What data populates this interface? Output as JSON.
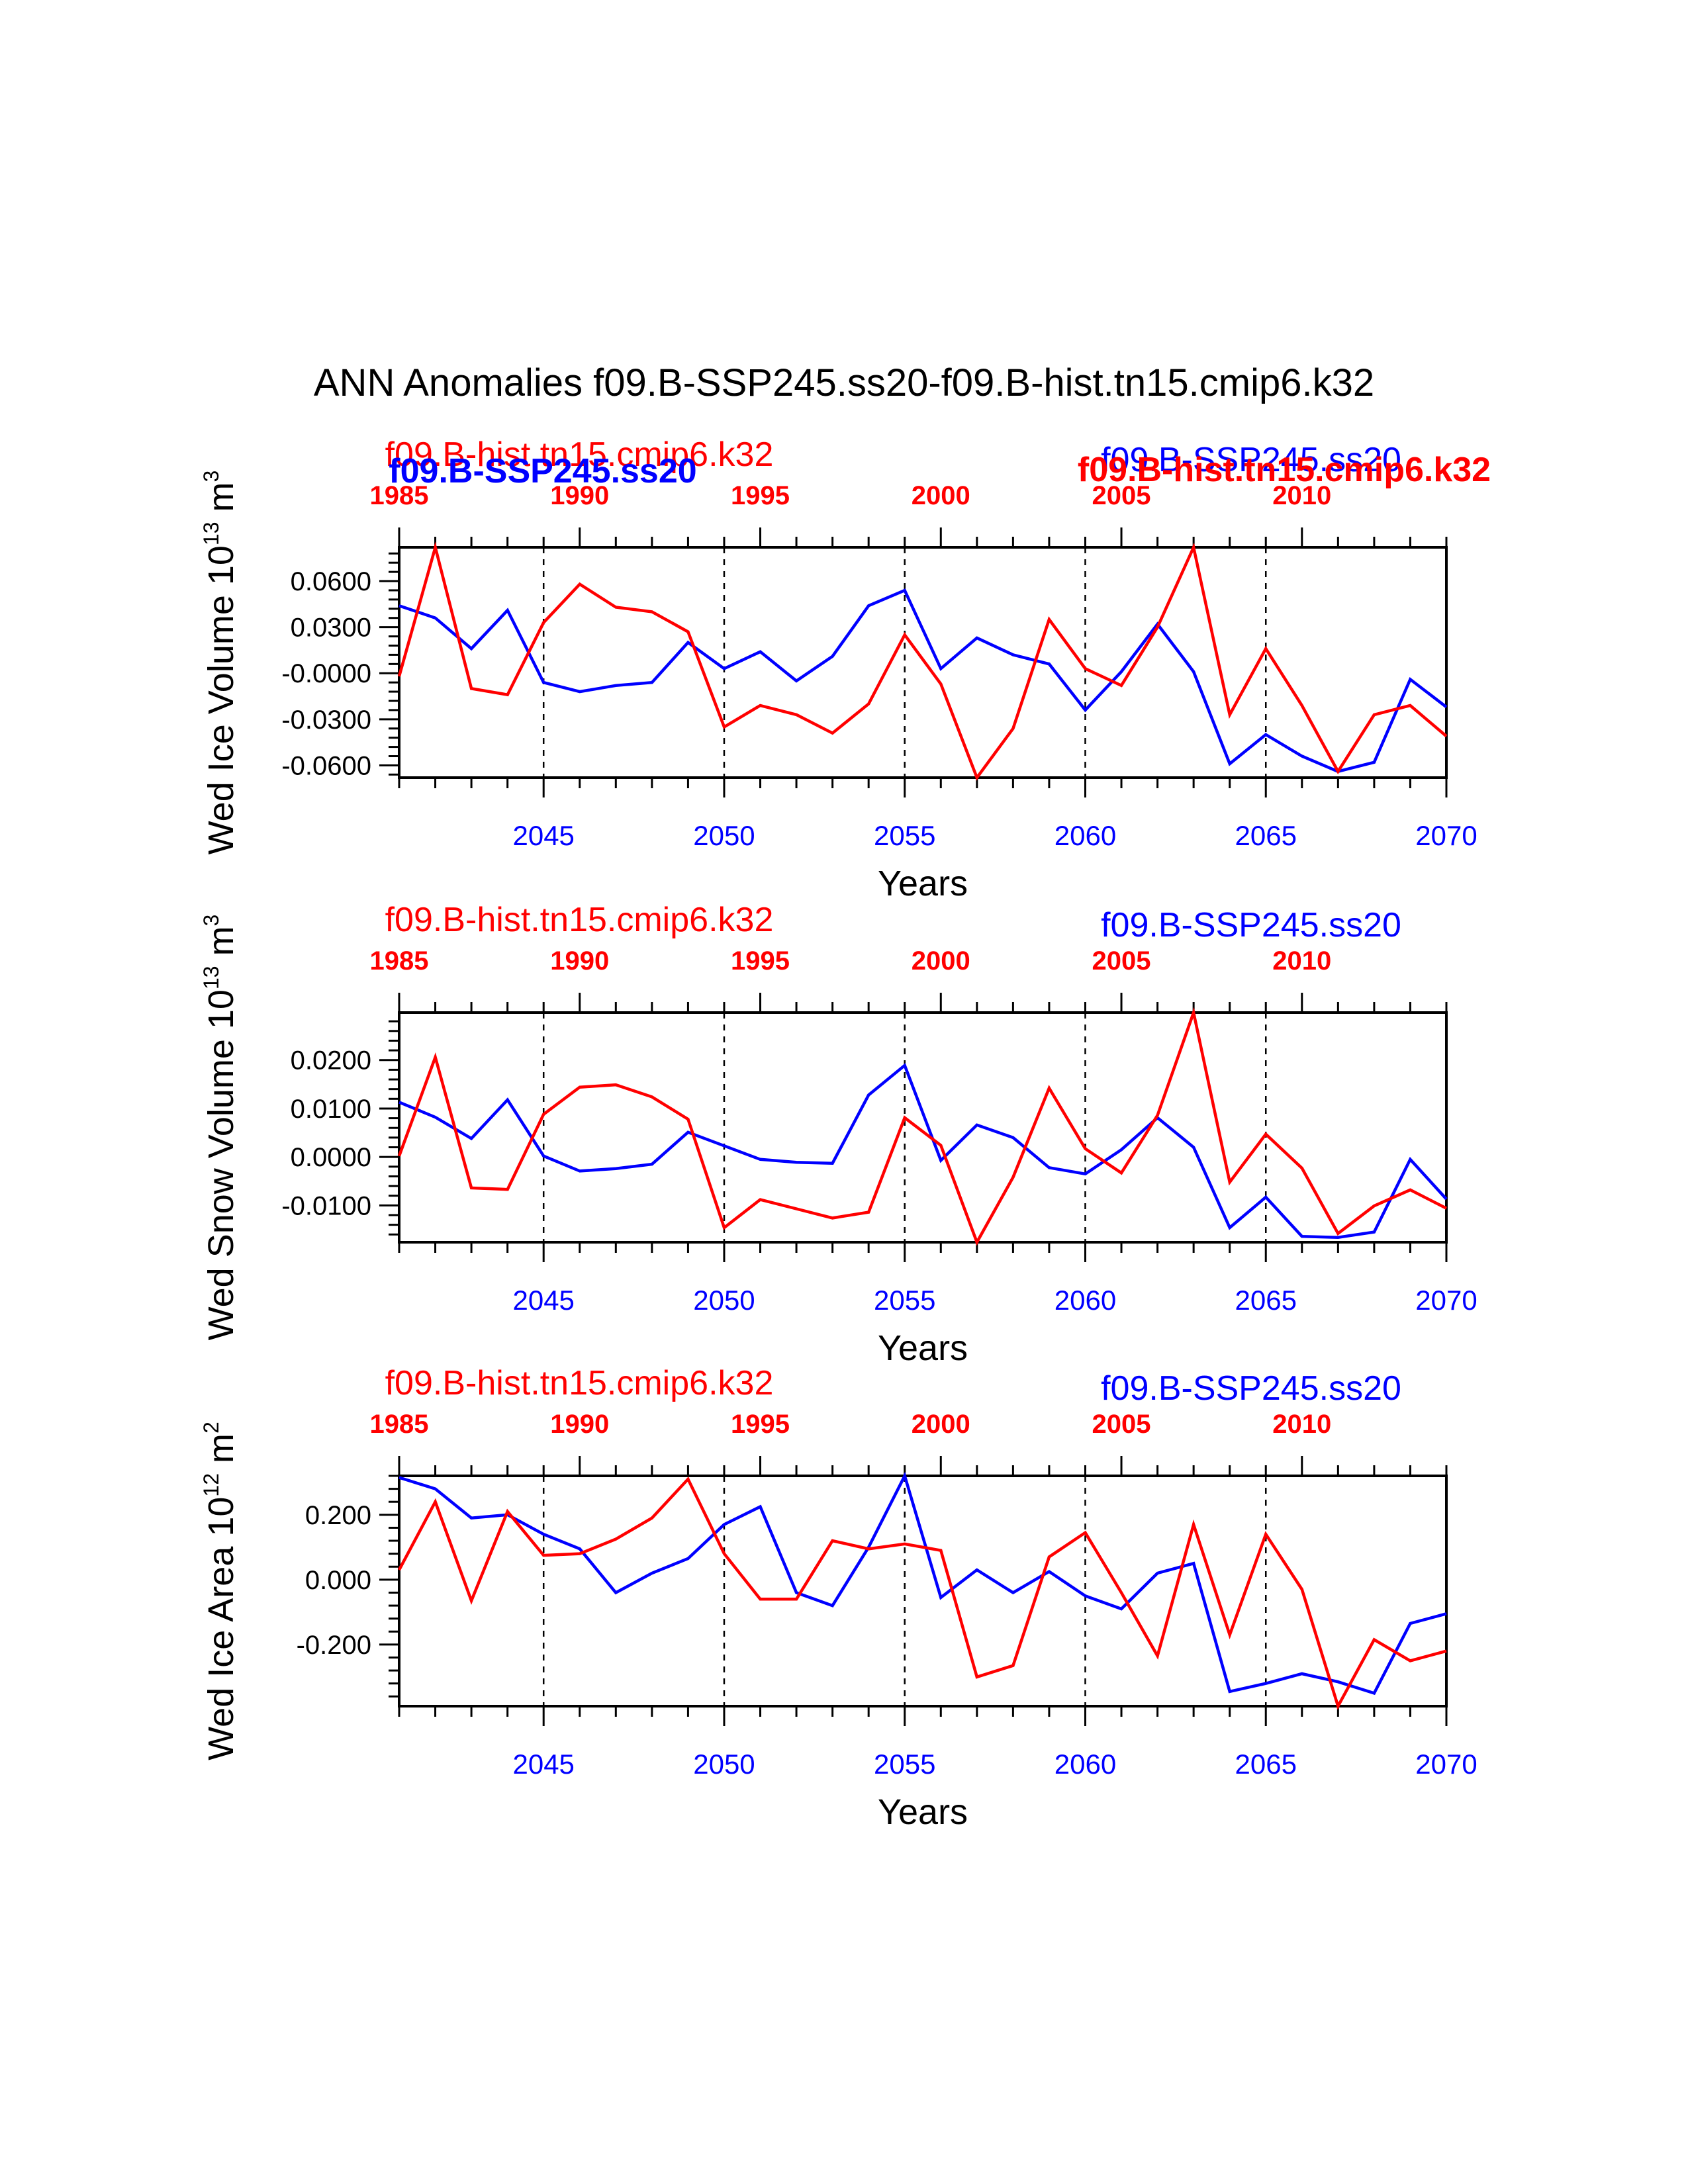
{
  "title": "ANN Anomalies f09.B-SSP245.ss20-f09.B-hist.tn15.cmip6.k32",
  "colors": {
    "ssp": "#0000ff",
    "hist": "#ff0000",
    "axis": "#000000"
  },
  "chart_data": [
    {
      "type": "line",
      "ylabel_main": "Wed Ice Volume 10",
      "ylabel_exp": "13",
      "ylabel_unit": " m",
      "ylabel_unit_exp": "3",
      "xlabel": "Years",
      "ylim": [
        -0.068,
        0.082
      ],
      "yticks": [
        -0.06,
        -0.03,
        0.0,
        0.03,
        0.06
      ],
      "ytick_labels": [
        "-0.0600",
        "-0.0300",
        "-0.0000",
        "0.0300",
        "0.0600"
      ],
      "grid": false,
      "top_label_hist": "f09.B-hist.tn15.cmip6.k32",
      "top_label_ssp": "f09.B-SSP245.ss20",
      "overlap_label_ssp": "f09.B-SSP245.ss20",
      "overlap_label_hist": "f09.B-hist.tn15.cmip6.k32",
      "series": [
        {
          "x_axis": "bottom",
          "x": [
            2041,
            2042,
            2043,
            2044,
            2045,
            2046,
            2047,
            2048,
            2049,
            2050,
            2051,
            2052,
            2053,
            2054,
            2055,
            2056,
            2057,
            2058,
            2059,
            2060,
            2061,
            2062,
            2063,
            2064,
            2065,
            2066,
            2067,
            2068,
            2069,
            2070
          ],
          "values": [
            0.044,
            0.036,
            0.016,
            0.041,
            -0.006,
            -0.012,
            -0.008,
            -0.006,
            0.02,
            0.003,
            0.014,
            -0.005,
            0.011,
            0.044,
            0.054,
            0.003,
            0.023,
            0.012,
            0.006,
            -0.024,
            0.001,
            0.032,
            0.001,
            -0.059,
            -0.04,
            -0.054,
            -0.064,
            -0.058,
            -0.004,
            -0.022
          ]
        },
        {
          "x_axis": "top",
          "x": [
            1985,
            1986,
            1987,
            1988,
            1989,
            1990,
            1991,
            1992,
            1993,
            1994,
            1995,
            1996,
            1997,
            1998,
            1999,
            2000,
            2001,
            2002,
            2003,
            2004,
            2005,
            2006,
            2007,
            2008,
            2009,
            2010,
            2011,
            2012,
            2013,
            2014
          ],
          "values": [
            -0.002,
            0.082,
            -0.01,
            -0.014,
            0.033,
            0.058,
            0.043,
            0.04,
            0.027,
            -0.035,
            -0.021,
            -0.027,
            -0.039,
            -0.02,
            0.025,
            -0.007,
            -0.068,
            -0.036,
            0.035,
            0.003,
            -0.008,
            0.03,
            0.082,
            -0.027,
            0.016,
            -0.021,
            -0.064,
            -0.027,
            -0.021,
            -0.041
          ]
        }
      ]
    },
    {
      "type": "line",
      "ylabel_main": "Wed Snow Volume 10",
      "ylabel_exp": "13",
      "ylabel_unit": " m",
      "ylabel_unit_exp": "3",
      "xlabel": "Years",
      "ylim": [
        -0.0176,
        0.0298
      ],
      "yticks": [
        -0.01,
        0.0,
        0.01,
        0.02
      ],
      "ytick_labels": [
        "-0.0100",
        "0.0000",
        "0.0100",
        "0.0200"
      ],
      "grid": false,
      "top_label_hist": "f09.B-hist.tn15.cmip6.k32",
      "top_label_ssp": "f09.B-SSP245.ss20",
      "series": [
        {
          "x_axis": "bottom",
          "x": [
            2041,
            2042,
            2043,
            2044,
            2045,
            2046,
            2047,
            2048,
            2049,
            2050,
            2051,
            2052,
            2053,
            2054,
            2055,
            2056,
            2057,
            2058,
            2059,
            2060,
            2061,
            2062,
            2063,
            2064,
            2065,
            2066,
            2067,
            2068,
            2069,
            2070
          ],
          "values": [
            0.0113,
            0.0082,
            0.0038,
            0.0118,
            0.0002,
            -0.0029,
            -0.0024,
            -0.0015,
            0.0051,
            0.0023,
            -0.0005,
            -0.0011,
            -0.0013,
            0.0128,
            0.0189,
            -0.0007,
            0.0066,
            0.004,
            -0.0022,
            -0.0035,
            0.0015,
            0.0081,
            0.002,
            -0.0146,
            -0.0083,
            -0.0164,
            -0.0166,
            -0.0155,
            -0.0005,
            -0.0087
          ]
        },
        {
          "x_axis": "top",
          "x": [
            1985,
            1986,
            1987,
            1988,
            1989,
            1990,
            1991,
            1992,
            1993,
            1994,
            1995,
            1996,
            1997,
            1998,
            1999,
            2000,
            2001,
            2002,
            2003,
            2004,
            2005,
            2006,
            2007,
            2008,
            2009,
            2010,
            2011,
            2012,
            2013,
            2014
          ],
          "values": [
            0.0002,
            0.0206,
            -0.0064,
            -0.0067,
            0.0088,
            0.0144,
            0.0149,
            0.0124,
            0.0078,
            -0.0146,
            -0.0088,
            -0.0107,
            -0.0126,
            -0.0114,
            0.0081,
            0.0024,
            -0.0176,
            -0.0042,
            0.0142,
            0.0017,
            -0.0033,
            0.0086,
            0.0298,
            -0.0052,
            0.0047,
            -0.0023,
            -0.0158,
            -0.0101,
            -0.0068,
            -0.0106
          ]
        }
      ]
    },
    {
      "type": "line",
      "ylabel_main": "Wed Ice Area 10",
      "ylabel_exp": "12",
      "ylabel_unit": " m",
      "ylabel_unit_exp": "2",
      "xlabel": "Years",
      "ylim": [
        -0.39,
        0.32
      ],
      "yticks": [
        -0.2,
        0.0,
        0.2
      ],
      "ytick_labels": [
        "-0.200",
        "0.000",
        "0.200"
      ],
      "grid": false,
      "top_label_hist": "f09.B-hist.tn15.cmip6.k32",
      "top_label_ssp": "f09.B-SSP245.ss20",
      "series": [
        {
          "x_axis": "bottom",
          "x": [
            2041,
            2042,
            2043,
            2044,
            2045,
            2046,
            2047,
            2048,
            2049,
            2050,
            2051,
            2052,
            2053,
            2054,
            2055,
            2056,
            2057,
            2058,
            2059,
            2060,
            2061,
            2062,
            2063,
            2064,
            2065,
            2066,
            2067,
            2068,
            2069,
            2070
          ],
          "values": [
            0.315,
            0.28,
            0.19,
            0.2,
            0.14,
            0.095,
            -0.04,
            0.02,
            0.065,
            0.17,
            0.225,
            -0.04,
            -0.08,
            0.1,
            0.32,
            -0.055,
            0.03,
            -0.04,
            0.025,
            -0.05,
            -0.09,
            0.02,
            0.05,
            -0.345,
            -0.32,
            -0.29,
            -0.315,
            -0.35,
            -0.135,
            -0.105
          ]
        },
        {
          "x_axis": "top",
          "x": [
            1985,
            1986,
            1987,
            1988,
            1989,
            1990,
            1991,
            1992,
            1993,
            1994,
            1995,
            1996,
            1997,
            1998,
            1999,
            2000,
            2001,
            2002,
            2003,
            2004,
            2005,
            2006,
            2007,
            2008,
            2009,
            2010,
            2011,
            2012,
            2013,
            2014
          ],
          "values": [
            0.03,
            0.24,
            -0.065,
            0.21,
            0.075,
            0.08,
            0.125,
            0.19,
            0.31,
            0.08,
            -0.06,
            -0.06,
            0.12,
            0.095,
            0.11,
            0.09,
            -0.3,
            -0.265,
            0.07,
            0.145,
            -0.04,
            -0.235,
            0.17,
            -0.17,
            0.14,
            -0.03,
            -0.39,
            -0.185,
            -0.25,
            -0.22
          ]
        }
      ]
    }
  ],
  "bottom_xticks": [
    2045,
    2050,
    2055,
    2060,
    2065,
    2070
  ],
  "bottom_xtick_labels": [
    "2045",
    "2050",
    "2055",
    "2060",
    "2065",
    "2070"
  ],
  "top_xticks": [
    1985,
    1990,
    1995,
    2000,
    2005,
    2010
  ],
  "top_xtick_labels": [
    "1985",
    "1990",
    "1995",
    "2000",
    "2005",
    "2010"
  ]
}
